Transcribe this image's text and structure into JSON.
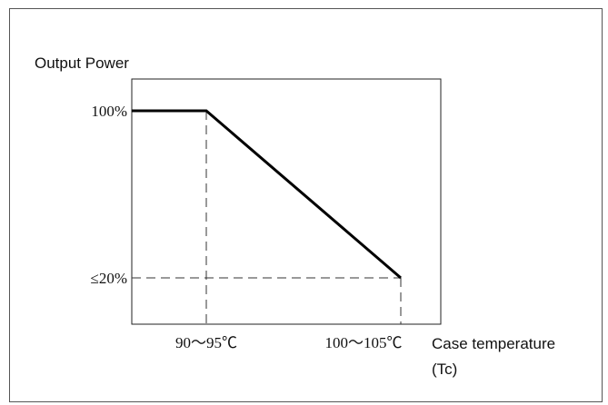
{
  "chart_data": {
    "type": "line",
    "ylabel": "Output Power",
    "xlabel_line1": "Case temperature",
    "xlabel_line2": "(Tc)",
    "x_ticks": [
      "90～95℃",
      "100～105℃"
    ],
    "y_ticks": [
      "100%",
      "≤20%"
    ],
    "series": [
      {
        "points": [
          {
            "x": "start",
            "y": 100
          },
          {
            "x": "90～95℃",
            "y": 100
          },
          {
            "x": "100～105℃",
            "y": 20
          }
        ]
      }
    ],
    "grid": false,
    "colors": {
      "line": "#000000",
      "axis": "#222222",
      "guide": "#333333"
    }
  }
}
